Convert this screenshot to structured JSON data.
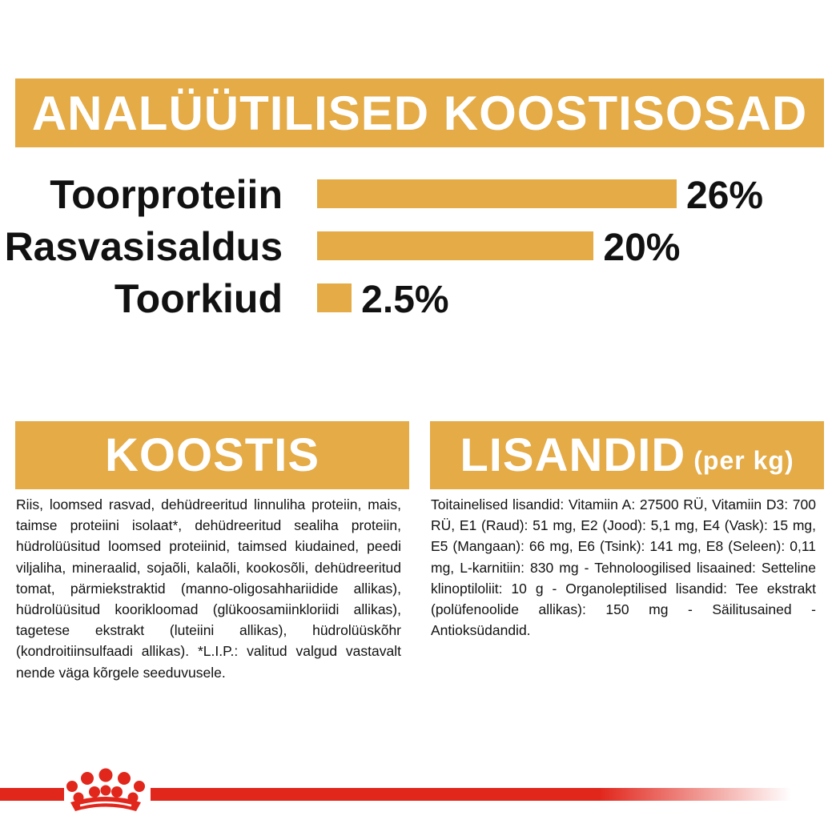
{
  "header": {
    "title": "ANALÜÜTILISED KOOSTISOSAD"
  },
  "chart_data": {
    "type": "bar",
    "orientation": "horizontal",
    "categories": [
      "Toorproteiin",
      "Rasvasisaldus",
      "Toorkiud"
    ],
    "values": [
      26,
      20,
      2.5
    ],
    "value_labels": [
      "26%",
      "20%",
      "2.5%"
    ],
    "title": "ANALÜÜTILISED KOOSTISOSAD",
    "xlabel": "",
    "ylabel": "",
    "grid": false,
    "legend": "none",
    "bar_color": "#e4ab46"
  },
  "koostis": {
    "title": "KOOSTIS",
    "text": "Riis, loomsed rasvad, dehüdreeritud linnuliha proteiin, mais, taimse proteiini isolaat*, dehüdreeritud sealiha proteiin, hüdrolüüsitud loomsed proteiinid, taimsed kiudained, peedi viljaliha, mineraalid, sojaõli, kalaõli, kookosõli, dehüdreeritud tomat, pärmiekstraktid (manno-oligosahhariidide allikas), hüdrolüüsitud koorikloomad (glükoosamiinkloriidi allikas), tagetese ekstrakt (luteiini allikas), hüdrolüüskõhr (kondroitiinsulfaadi allikas). *L.I.P.: valitud valgud vastavalt nende väga kõrgele seeduvusele."
  },
  "lisandid": {
    "title": "LISANDID",
    "subtitle": "(per kg)",
    "text": "Toitainelised lisandid: Vitamiin A: 27500 RÜ, Vitamiin D3: 700 RÜ, E1 (Raud): 51 mg, E2 (Jood): 5,1 mg, E4 (Vask): 15 mg, E5 (Mangaan): 66 mg, E6 (Tsink): 141 mg, E8 (Seleen): 0,11 mg, L-karnitiin: 830 mg - Tehnoloogilised lisaained: Setteline klinoptiloliit: 10 g - Organoleptilised lisandid: Tee ekstrakt (polüfenoolide allikas): 150 mg - Säilitusained - Antioksüdandid."
  },
  "brand": {
    "logo_icon": "royal-canin-crown-icon",
    "accent_color": "#e1261c"
  }
}
